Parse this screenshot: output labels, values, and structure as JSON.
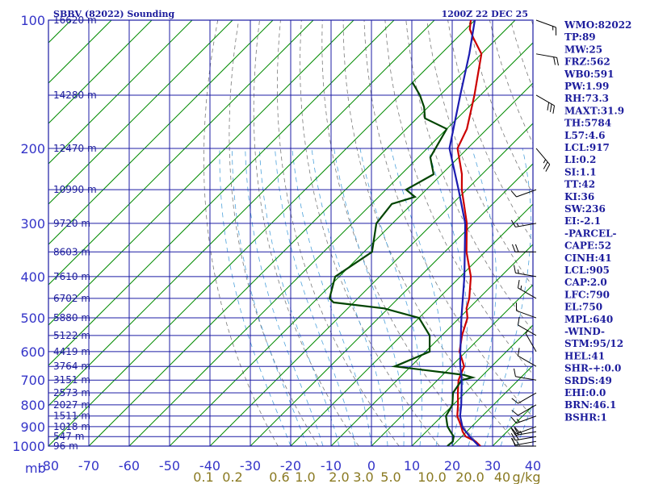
{
  "chart_data": {
    "type": "line",
    "title": "SBBV (82022) Sounding",
    "time_label": "1200Z 22 DEC 25",
    "xlabel": "",
    "ylabel": "mb",
    "pressure_levels": [
      100,
      200,
      300,
      400,
      500,
      600,
      700,
      800,
      900,
      1000
    ],
    "pressure_tick_labels": [
      "100",
      "200",
      "300",
      "400",
      "500",
      "600",
      "700",
      "800",
      "900",
      "1000"
    ],
    "pressure_unit_label": "mb",
    "temperature_ticks": [
      -80,
      -70,
      -60,
      -50,
      -40,
      -30,
      -20,
      -10,
      0,
      10,
      20,
      30,
      40
    ],
    "temperature_tick_labels": [
      "-80",
      "-70",
      "-60",
      "-50",
      "-40",
      "-30",
      "-20",
      "-10",
      "0",
      "10",
      "20",
      "30",
      "40"
    ],
    "temperature_range": [
      -80,
      40
    ],
    "mixing_ratio_labels": [
      "0.1",
      "0.2",
      "0.6",
      "1.0",
      "2.0",
      "3.0",
      "5.0",
      "10.0",
      "20.0",
      "40",
      "g/kg"
    ],
    "heights": [
      {
        "label": "16620 m",
        "p": 100
      },
      {
        "label": "14280 m",
        "p": 150
      },
      {
        "label": "12470 m",
        "p": 200
      },
      {
        "label": "10990 m",
        "p": 250
      },
      {
        "label": "9720 m",
        "p": 300
      },
      {
        "label": "8603 m",
        "p": 350
      },
      {
        "label": "7610 m",
        "p": 400
      },
      {
        "label": "6702 m",
        "p": 450
      },
      {
        "label": "5880 m",
        "p": 500
      },
      {
        "label": "5122 m",
        "p": 550
      },
      {
        "label": "4419 m",
        "p": 600
      },
      {
        "label": "3764 m",
        "p": 650
      },
      {
        "label": "3151 m",
        "p": 700
      },
      {
        "label": "2573 m",
        "p": 750
      },
      {
        "label": "2027 m",
        "p": 800
      },
      {
        "label": "1511 m",
        "p": 850
      },
      {
        "label": "1018 m",
        "p": 900
      },
      {
        "label": "547 m",
        "p": 950
      },
      {
        "label": "96 m",
        "p": 1000
      }
    ],
    "series": [
      {
        "name": "Temperature",
        "color": "#cc0000",
        "points": [
          [
            1000,
            27.0
          ],
          [
            975,
            24.6
          ],
          [
            950,
            21.0
          ],
          [
            925,
            19.0
          ],
          [
            900,
            17.4
          ],
          [
            850,
            13.8
          ],
          [
            800,
            11.2
          ],
          [
            750,
            8.2
          ],
          [
            700,
            5.2
          ],
          [
            650,
            3.2
          ],
          [
            600,
            -1.6
          ],
          [
            550,
            -5.0
          ],
          [
            500,
            -8.0
          ],
          [
            475,
            -10.6
          ],
          [
            450,
            -12.4
          ],
          [
            400,
            -17.4
          ],
          [
            350,
            -24.6
          ],
          [
            300,
            -31.6
          ],
          [
            250,
            -41.2
          ],
          [
            230,
            -45.0
          ],
          [
            200,
            -52.5
          ],
          [
            180,
            -55.0
          ],
          [
            150,
            -61.5
          ],
          [
            120,
            -70.0
          ],
          [
            110,
            -76.0
          ],
          [
            105,
            -79.0
          ],
          [
            100,
            -81.0
          ]
        ]
      },
      {
        "name": "Dewpoint",
        "color": "#004400",
        "points": [
          [
            1000,
            18.8
          ],
          [
            975,
            19.0
          ],
          [
            950,
            18.0
          ],
          [
            925,
            16.0
          ],
          [
            900,
            14.0
          ],
          [
            850,
            11.0
          ],
          [
            800,
            9.8
          ],
          [
            750,
            7.0
          ],
          [
            700,
            6.0
          ],
          [
            690,
            8.0
          ],
          [
            680,
            5.0
          ],
          [
            650,
            -14.0
          ],
          [
            640,
            -13.0
          ],
          [
            600,
            -9.0
          ],
          [
            550,
            -13.0
          ],
          [
            500,
            -20.0
          ],
          [
            475,
            -31.0
          ],
          [
            460,
            -45.0
          ],
          [
            450,
            -47.0
          ],
          [
            400,
            -51.0
          ],
          [
            350,
            -48.0
          ],
          [
            300,
            -54.0
          ],
          [
            270,
            -55.0
          ],
          [
            260,
            -51.0
          ],
          [
            250,
            -55.0
          ],
          [
            230,
            -52.0
          ],
          [
            210,
            -57.0
          ],
          [
            180,
            -60.0
          ],
          [
            170,
            -68.0
          ],
          [
            160,
            -71.0
          ],
          [
            150,
            -75.0
          ],
          [
            140,
            -80.0
          ]
        ]
      },
      {
        "name": "Parcel",
        "color": "#1c1cb0",
        "points": [
          [
            1000,
            26.6
          ],
          [
            950,
            22.0
          ],
          [
            905,
            18.0
          ],
          [
            850,
            14.5
          ],
          [
            800,
            12.0
          ],
          [
            700,
            6.0
          ],
          [
            640,
            1.5
          ],
          [
            600,
            -1.4
          ],
          [
            500,
            -9.5
          ],
          [
            400,
            -19.0
          ],
          [
            300,
            -32.0
          ],
          [
            250,
            -42.0
          ],
          [
            200,
            -54.5
          ],
          [
            150,
            -65.0
          ],
          [
            120,
            -73.0
          ],
          [
            100,
            -80.0
          ]
        ]
      }
    ],
    "wind_barbs": [
      {
        "p": 1000,
        "dir": 90,
        "kt": 10
      },
      {
        "p": 975,
        "dir": 80,
        "kt": 15
      },
      {
        "p": 950,
        "dir": 80,
        "kt": 20
      },
      {
        "p": 925,
        "dir": 80,
        "kt": 25
      },
      {
        "p": 900,
        "dir": 70,
        "kt": 20
      },
      {
        "p": 850,
        "dir": 70,
        "kt": 15
      },
      {
        "p": 800,
        "dir": 60,
        "kt": 10
      },
      {
        "p": 750,
        "dir": 60,
        "kt": 10
      },
      {
        "p": 700,
        "dir": 100,
        "kt": 10
      },
      {
        "p": 650,
        "dir": 120,
        "kt": 10
      },
      {
        "p": 600,
        "dir": 150,
        "kt": 5
      },
      {
        "p": 550,
        "dir": 120,
        "kt": 10
      },
      {
        "p": 500,
        "dir": 110,
        "kt": 10
      },
      {
        "p": 450,
        "dir": 120,
        "kt": 15
      },
      {
        "p": 400,
        "dir": 100,
        "kt": 15
      },
      {
        "p": 350,
        "dir": 90,
        "kt": 20
      },
      {
        "p": 300,
        "dir": 80,
        "kt": 15
      },
      {
        "p": 250,
        "dir": 70,
        "kt": 10
      },
      {
        "p": 200,
        "dir": 320,
        "kt": 25
      },
      {
        "p": 150,
        "dir": 300,
        "kt": 30
      },
      {
        "p": 120,
        "dir": 280,
        "kt": 20
      },
      {
        "p": 100,
        "dir": 290,
        "kt": 15
      }
    ],
    "indices": [
      "WMO:82022",
      "TP:89",
      "MW:25",
      "FRZ:562",
      "WB0:591",
      "PW:1.99",
      "RH:73.3",
      "MAXT:31.9",
      "TH:5784",
      "L57:4.6",
      "LCL:917",
      "LI:0.2",
      "SI:1.1",
      "TT:42",
      "KI:36",
      "SW:236",
      "EI:-2.1",
      "-PARCEL-",
      "CAPE:52",
      "CINH:41",
      "LCL:905",
      "CAP:2.0",
      "LFC:790",
      "EL:750",
      "MPL:640",
      "-WIND-",
      "STM:95/12",
      "HEL:41",
      "SHR-+:0.0",
      "SRDS:49",
      "EHI:0.0",
      "BRN:46.1",
      "BSHR:1"
    ]
  },
  "colors": {
    "isobar": "#1c1ca4",
    "isotherm": "#008a00",
    "dry_adiabat": "#7a7a7a",
    "moist_adiabat": "#4fa3dc",
    "temperature": "#cc0000",
    "dewpoint": "#004400",
    "parcel": "#1c1cb0"
  }
}
